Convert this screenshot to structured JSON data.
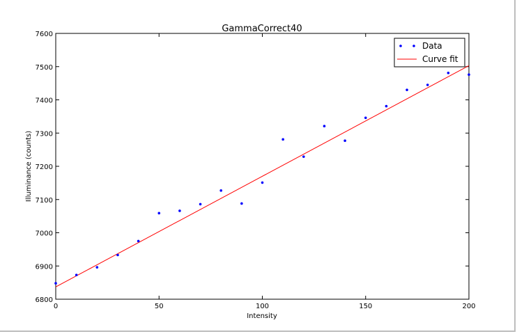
{
  "chart_data": {
    "type": "scatter",
    "title": "GammaCorrect40",
    "xlabel": "Intensity",
    "ylabel": "Illuminance (counts)",
    "xlim": [
      0,
      200
    ],
    "ylim": [
      6800,
      7600
    ],
    "xticks": [
      0,
      50,
      100,
      150,
      200
    ],
    "yticks": [
      6800,
      6900,
      7000,
      7100,
      7200,
      7300,
      7400,
      7500,
      7600
    ],
    "grid": false,
    "legend_position": "top-right",
    "series": [
      {
        "name": "Data",
        "style": "points",
        "color": "#0000ff",
        "x": [
          0,
          10,
          20,
          30,
          40,
          50,
          60,
          70,
          80,
          90,
          100,
          110,
          120,
          130,
          140,
          150,
          160,
          170,
          180,
          190,
          200
        ],
        "y": [
          6848,
          6873,
          6896,
          6933,
          6975,
          7059,
          7066,
          7086,
          7127,
          7088,
          7151,
          7281,
          7229,
          7321,
          7277,
          7346,
          7381,
          7430,
          7445,
          7481,
          7476
        ]
      },
      {
        "name": "Curve fit",
        "style": "line",
        "color": "#ff0000",
        "x": [
          0,
          200
        ],
        "y": [
          6837,
          7503
        ]
      }
    ]
  }
}
